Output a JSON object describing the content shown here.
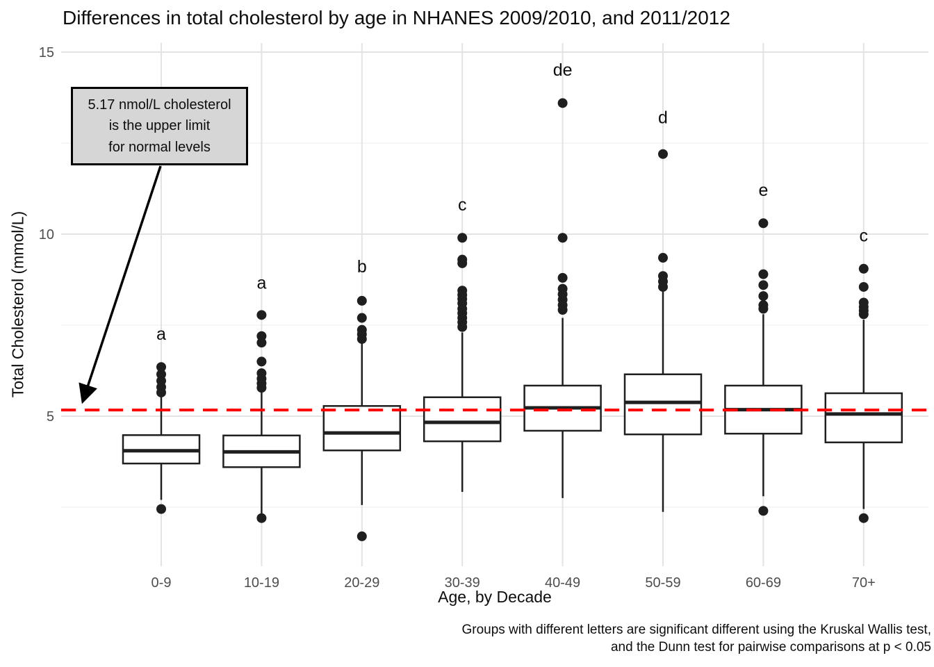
{
  "figure": {
    "title": "Differences in total cholesterol by age in NHANES 2009/2010, and 2011/2012",
    "x_axis_title": "Age, by Decade",
    "y_axis_title": "Total Cholesterol (mmol/L)",
    "caption": {
      "line1": "Groups with different letters are significant different using the Kruskal Wallis test,",
      "line2": "and the Dunn test for pairwise comparisons at p < 0.05"
    },
    "annotation": {
      "line1": "5.17 nmol/L cholesterol",
      "line2": "is the upper limit",
      "line3": "for normal levels"
    }
  },
  "chart_data": {
    "type": "boxplot",
    "title": "Differences in total cholesterol by age in NHANES 2009/2010, and 2011/2012",
    "xlabel": "Age, by Decade",
    "ylabel": "Total Cholesterol (mmol/L)",
    "caption": [
      "Groups with different letters are significant different using the Kruskal Wallis test,",
      "and the Dunn test for pairwise comparisons at p < 0.05"
    ],
    "categories": [
      "0-9",
      "10-19",
      "20-29",
      "30-39",
      "40-49",
      "50-59",
      "60-69",
      "70+"
    ],
    "y_tick_values": [
      5,
      10,
      15
    ],
    "y_tick_labels": [
      "5",
      "10",
      "15"
    ],
    "y_minor_values": [
      2.5,
      7.5,
      12.5
    ],
    "ylim": [
      0.85,
      15.25
    ],
    "grid": true,
    "legend": "none",
    "reference_line": {
      "value": 5.17,
      "dashed": true,
      "color": "#ff0000",
      "meaning": "upper limit for normal cholesterol"
    },
    "annotation_text": [
      "5.17 nmol/L cholesterol",
      "is the upper limit",
      "for normal levels"
    ],
    "groups": [
      {
        "category": "0-9",
        "letter": "a",
        "letter_y": 7.25,
        "whisker_low": 2.7,
        "q1": 3.7,
        "median": 4.05,
        "q3": 4.48,
        "whisker_high": 5.55,
        "outliers": [
          6.35,
          6.15,
          5.97,
          5.8,
          5.65,
          2.45
        ]
      },
      {
        "category": "10-19",
        "letter": "a",
        "letter_y": 8.65,
        "whisker_low": 2.32,
        "q1": 3.6,
        "median": 4.02,
        "q3": 4.47,
        "whisker_high": 5.72,
        "outliers": [
          7.78,
          7.2,
          7.02,
          6.5,
          6.18,
          6.03,
          5.9,
          5.78,
          2.2
        ]
      },
      {
        "category": "20-29",
        "letter": "b",
        "letter_y": 9.1,
        "whisker_low": 2.56,
        "q1": 4.06,
        "median": 4.54,
        "q3": 5.28,
        "whisker_high": 7.0,
        "outliers": [
          8.17,
          7.7,
          7.37,
          7.25,
          7.12,
          1.7
        ]
      },
      {
        "category": "30-39",
        "letter": "c",
        "letter_y": 10.8,
        "whisker_low": 2.92,
        "q1": 4.31,
        "median": 4.83,
        "q3": 5.52,
        "whisker_high": 7.3,
        "outliers": [
          9.9,
          9.3,
          9.2,
          8.45,
          8.33,
          8.22,
          8.1,
          7.95,
          7.83,
          7.7,
          7.58,
          7.45
        ]
      },
      {
        "category": "40-49",
        "letter": "de",
        "letter_y": 14.5,
        "whisker_low": 2.75,
        "q1": 4.6,
        "median": 5.23,
        "q3": 5.84,
        "whisker_high": 7.7,
        "outliers": [
          13.6,
          9.9,
          8.8,
          8.5,
          8.35,
          8.2,
          8.05,
          7.92
        ]
      },
      {
        "category": "50-59",
        "letter": "d",
        "letter_y": 13.2,
        "whisker_low": 2.37,
        "q1": 4.5,
        "median": 5.38,
        "q3": 6.15,
        "whisker_high": 8.45,
        "outliers": [
          12.2,
          9.35,
          8.85,
          8.7,
          8.55
        ]
      },
      {
        "category": "60-69",
        "letter": "e",
        "letter_y": 11.2,
        "whisker_low": 2.8,
        "q1": 4.52,
        "median": 5.18,
        "q3": 5.84,
        "whisker_high": 7.8,
        "outliers": [
          10.3,
          8.9,
          8.6,
          8.3,
          8.05,
          7.95,
          2.4
        ]
      },
      {
        "category": "70+",
        "letter": "c",
        "letter_y": 9.95,
        "whisker_low": 2.45,
        "q1": 4.28,
        "median": 5.06,
        "q3": 5.63,
        "whisker_high": 7.65,
        "outliers": [
          9.05,
          8.55,
          8.12,
          8.0,
          7.9,
          7.8,
          2.2
        ]
      }
    ],
    "colors": {
      "box_stroke": "#1f1f1f",
      "box_fill": "#ffffff",
      "median": "#1f1f1f",
      "outlier": "#1f1f1f",
      "ref_line": "#ff0000",
      "grid_major": "#e3e3e3",
      "grid_minor": "#f0f0f0",
      "tick_label": "#4d4d4d",
      "letter": "#0d0d0d",
      "annotation_bg": "#d6d6d6",
      "annotation_border": "#000000",
      "arrow": "#000000"
    }
  }
}
